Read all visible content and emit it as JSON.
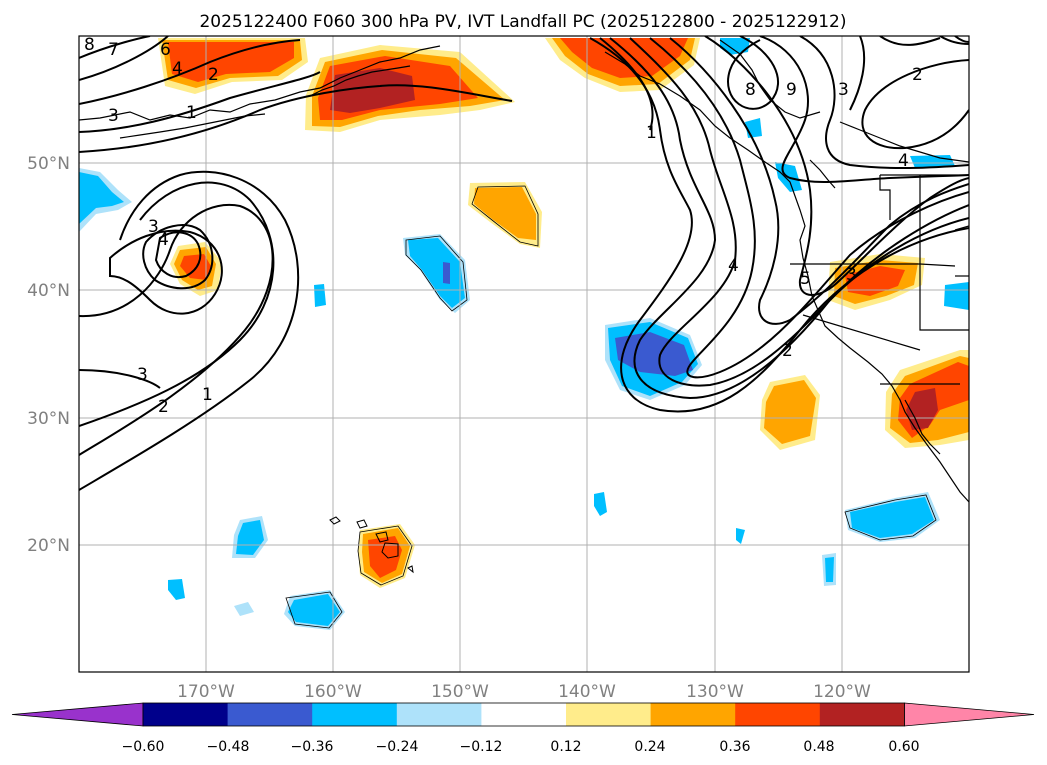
{
  "title": "2025122400 F060 300 hPa PV, IVT Landfall PC (2025122800 - 2025122912)",
  "map": {
    "lon_range": [
      -180,
      -110
    ],
    "lat_range": [
      10,
      60
    ],
    "lon_ticks": [
      {
        "lon": -170,
        "label": "170°W"
      },
      {
        "lon": -160,
        "label": "160°W"
      },
      {
        "lon": -150,
        "label": "150°W"
      },
      {
        "lon": -140,
        "label": "140°W"
      },
      {
        "lon": -130,
        "label": "130°W"
      },
      {
        "lon": -120,
        "label": "120°W"
      }
    ],
    "lat_ticks": [
      {
        "lat": 20,
        "label": "20°N"
      },
      {
        "lat": 30,
        "label": "30°N"
      },
      {
        "lat": 40,
        "label": "40°N"
      },
      {
        "lat": 50,
        "label": "50°N"
      }
    ]
  },
  "colorbar": {
    "colors": [
      "#9932CC",
      "#00008B",
      "#3A5AD0",
      "#00BFFF",
      "#AEE2FA",
      "#FFFFFF",
      "#FFEC8B",
      "#FFA500",
      "#FF4500",
      "#B22222",
      "#FF85A8"
    ],
    "tick_labels": [
      "−0.60",
      "−0.48",
      "−0.36",
      "−0.24",
      "−0.12",
      "0.12",
      "0.24",
      "0.36",
      "0.48",
      "0.60"
    ]
  },
  "contour_labels": [
    "8",
    "7",
    "6",
    "4",
    "2",
    "3",
    "1",
    "3",
    "4",
    "3",
    "2",
    "1",
    "1",
    "4",
    "5",
    "3",
    "2",
    "8",
    "9",
    "3",
    "2",
    "4"
  ]
}
